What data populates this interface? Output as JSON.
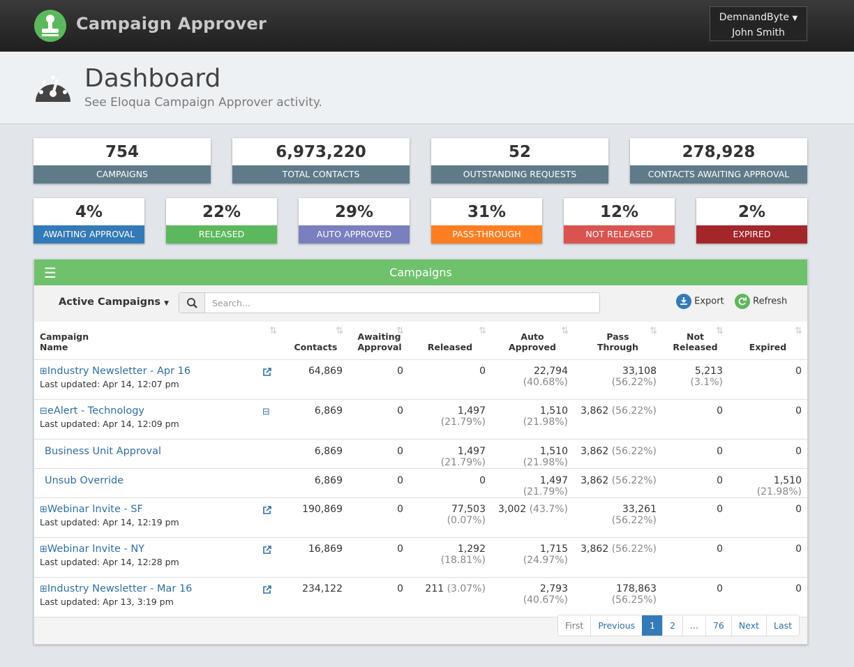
{
  "header": {
    "app_name": "Campaign Approver",
    "account": "DemnandByte",
    "user": "John Smith"
  },
  "page": {
    "title": "Dashboard",
    "subtitle": "See Eloqua Campaign Approver activity."
  },
  "stats": [
    {
      "value": "754",
      "label": "CAMPAIGNS"
    },
    {
      "value": "6,973,220",
      "label": "TOTAL CONTACTS"
    },
    {
      "value": "52",
      "label": "OUTSTANDING REQUESTS"
    },
    {
      "value": "278,928",
      "label": "CONTACTS AWAITING APPROVAL"
    }
  ],
  "rates": [
    {
      "value": "4%",
      "label": "AWAITING APPROVAL",
      "color": "#337ab7"
    },
    {
      "value": "22%",
      "label": "RELEASED",
      "color": "#5cb85c"
    },
    {
      "value": "29%",
      "label": "AUTO APPROVED",
      "color": "#7a7fc0"
    },
    {
      "value": "31%",
      "label": "PASS-THROUGH",
      "color": "#fd7e22"
    },
    {
      "value": "12%",
      "label": "NOT RELEASED",
      "color": "#d9534f"
    },
    {
      "value": "2%",
      "label": "EXPIRED",
      "color": "#a3262a"
    }
  ],
  "panel": {
    "title": "Campaigns",
    "filter": "Active Campaigns",
    "search_placeholder": "Search...",
    "export": "Export",
    "refresh": "Refresh"
  },
  "table": {
    "columns": [
      "Campaign Name",
      "Contacts",
      "Awaiting Approval",
      "Released",
      "Auto Approved",
      "Pass Through",
      "Not Released",
      "Expired"
    ],
    "rows": [
      {
        "name": "Industry Newsletter - Apr 16",
        "updated": "Last updated: Apr 14, 12:07 pm",
        "cells": [
          "64,869",
          "0",
          "0",
          {
            "v": "22,794",
            "p": "(40.68%)"
          },
          {
            "v": "33,108",
            "p": "(56.22%)"
          },
          {
            "v": "5,213",
            "p": "(3.1%)"
          },
          "0"
        ]
      },
      {
        "name": "eAlert - Technology",
        "updated": "Last updated: Apr 14, 12:09 pm",
        "cells": [
          "6,869",
          "0",
          {
            "v": "1,497",
            "p": "(21.79%)"
          },
          {
            "v": "1,510",
            "p": "(21.98%)"
          },
          {
            "v": "3,862",
            "p": "(56.22%)"
          },
          "0",
          "0"
        ],
        "children": [
          {
            "name": "Business Unit Approval",
            "cells": [
              "6,869",
              "0",
              {
                "v": "1,497",
                "p": "(21.79%)"
              },
              {
                "v": "1,510",
                "p": "(21.98%)"
              },
              {
                "v": "3,862",
                "p": "(56.22%)"
              },
              "0",
              "0"
            ]
          },
          {
            "name": "Unsub Override",
            "cells": [
              "6,869",
              "0",
              "0",
              {
                "v": "1,497",
                "p": "(21.79%)"
              },
              {
                "v": "3,862",
                "p": "(56.22%)"
              },
              "0",
              {
                "v": "1,510",
                "p": "(21.98%)"
              }
            ]
          }
        ]
      },
      {
        "name": "Webinar Invite - SF",
        "updated": "Last updated: Apr 14, 12:19 pm",
        "cells": [
          "190,869",
          "0",
          {
            "v": "77,503",
            "p": "(0.07%)"
          },
          {
            "v": "3,002",
            "p": "(43.7%)"
          },
          {
            "v": "33,261",
            "p": "(56.22%)"
          },
          "0",
          "0"
        ]
      },
      {
        "name": "Webinar Invite - NY",
        "updated": "Last updated: Apr 14, 12:28 pm",
        "cells": [
          "16,869",
          "0",
          {
            "v": "1,292",
            "p": "(18.81%)"
          },
          {
            "v": "1,715",
            "p": "(24.97%)"
          },
          {
            "v": "3,862",
            "p": "(56.22%)"
          },
          "0",
          "0"
        ]
      },
      {
        "name": "Industry Newsletter - Mar 16",
        "updated": "Last updated: Apr 13, 3:19 pm",
        "cells": [
          "234,122",
          "0",
          {
            "v": "211",
            "p": "(3.07%)"
          },
          {
            "v": "2,793",
            "p": "(40.67%)"
          },
          {
            "v": "178,863",
            "p": "(56.25%)"
          },
          "0",
          "0"
        ]
      }
    ]
  },
  "pagination": {
    "items": [
      "First",
      "Previous",
      "1",
      "2",
      "...",
      "76",
      "Next",
      "Last"
    ],
    "active": "1"
  }
}
